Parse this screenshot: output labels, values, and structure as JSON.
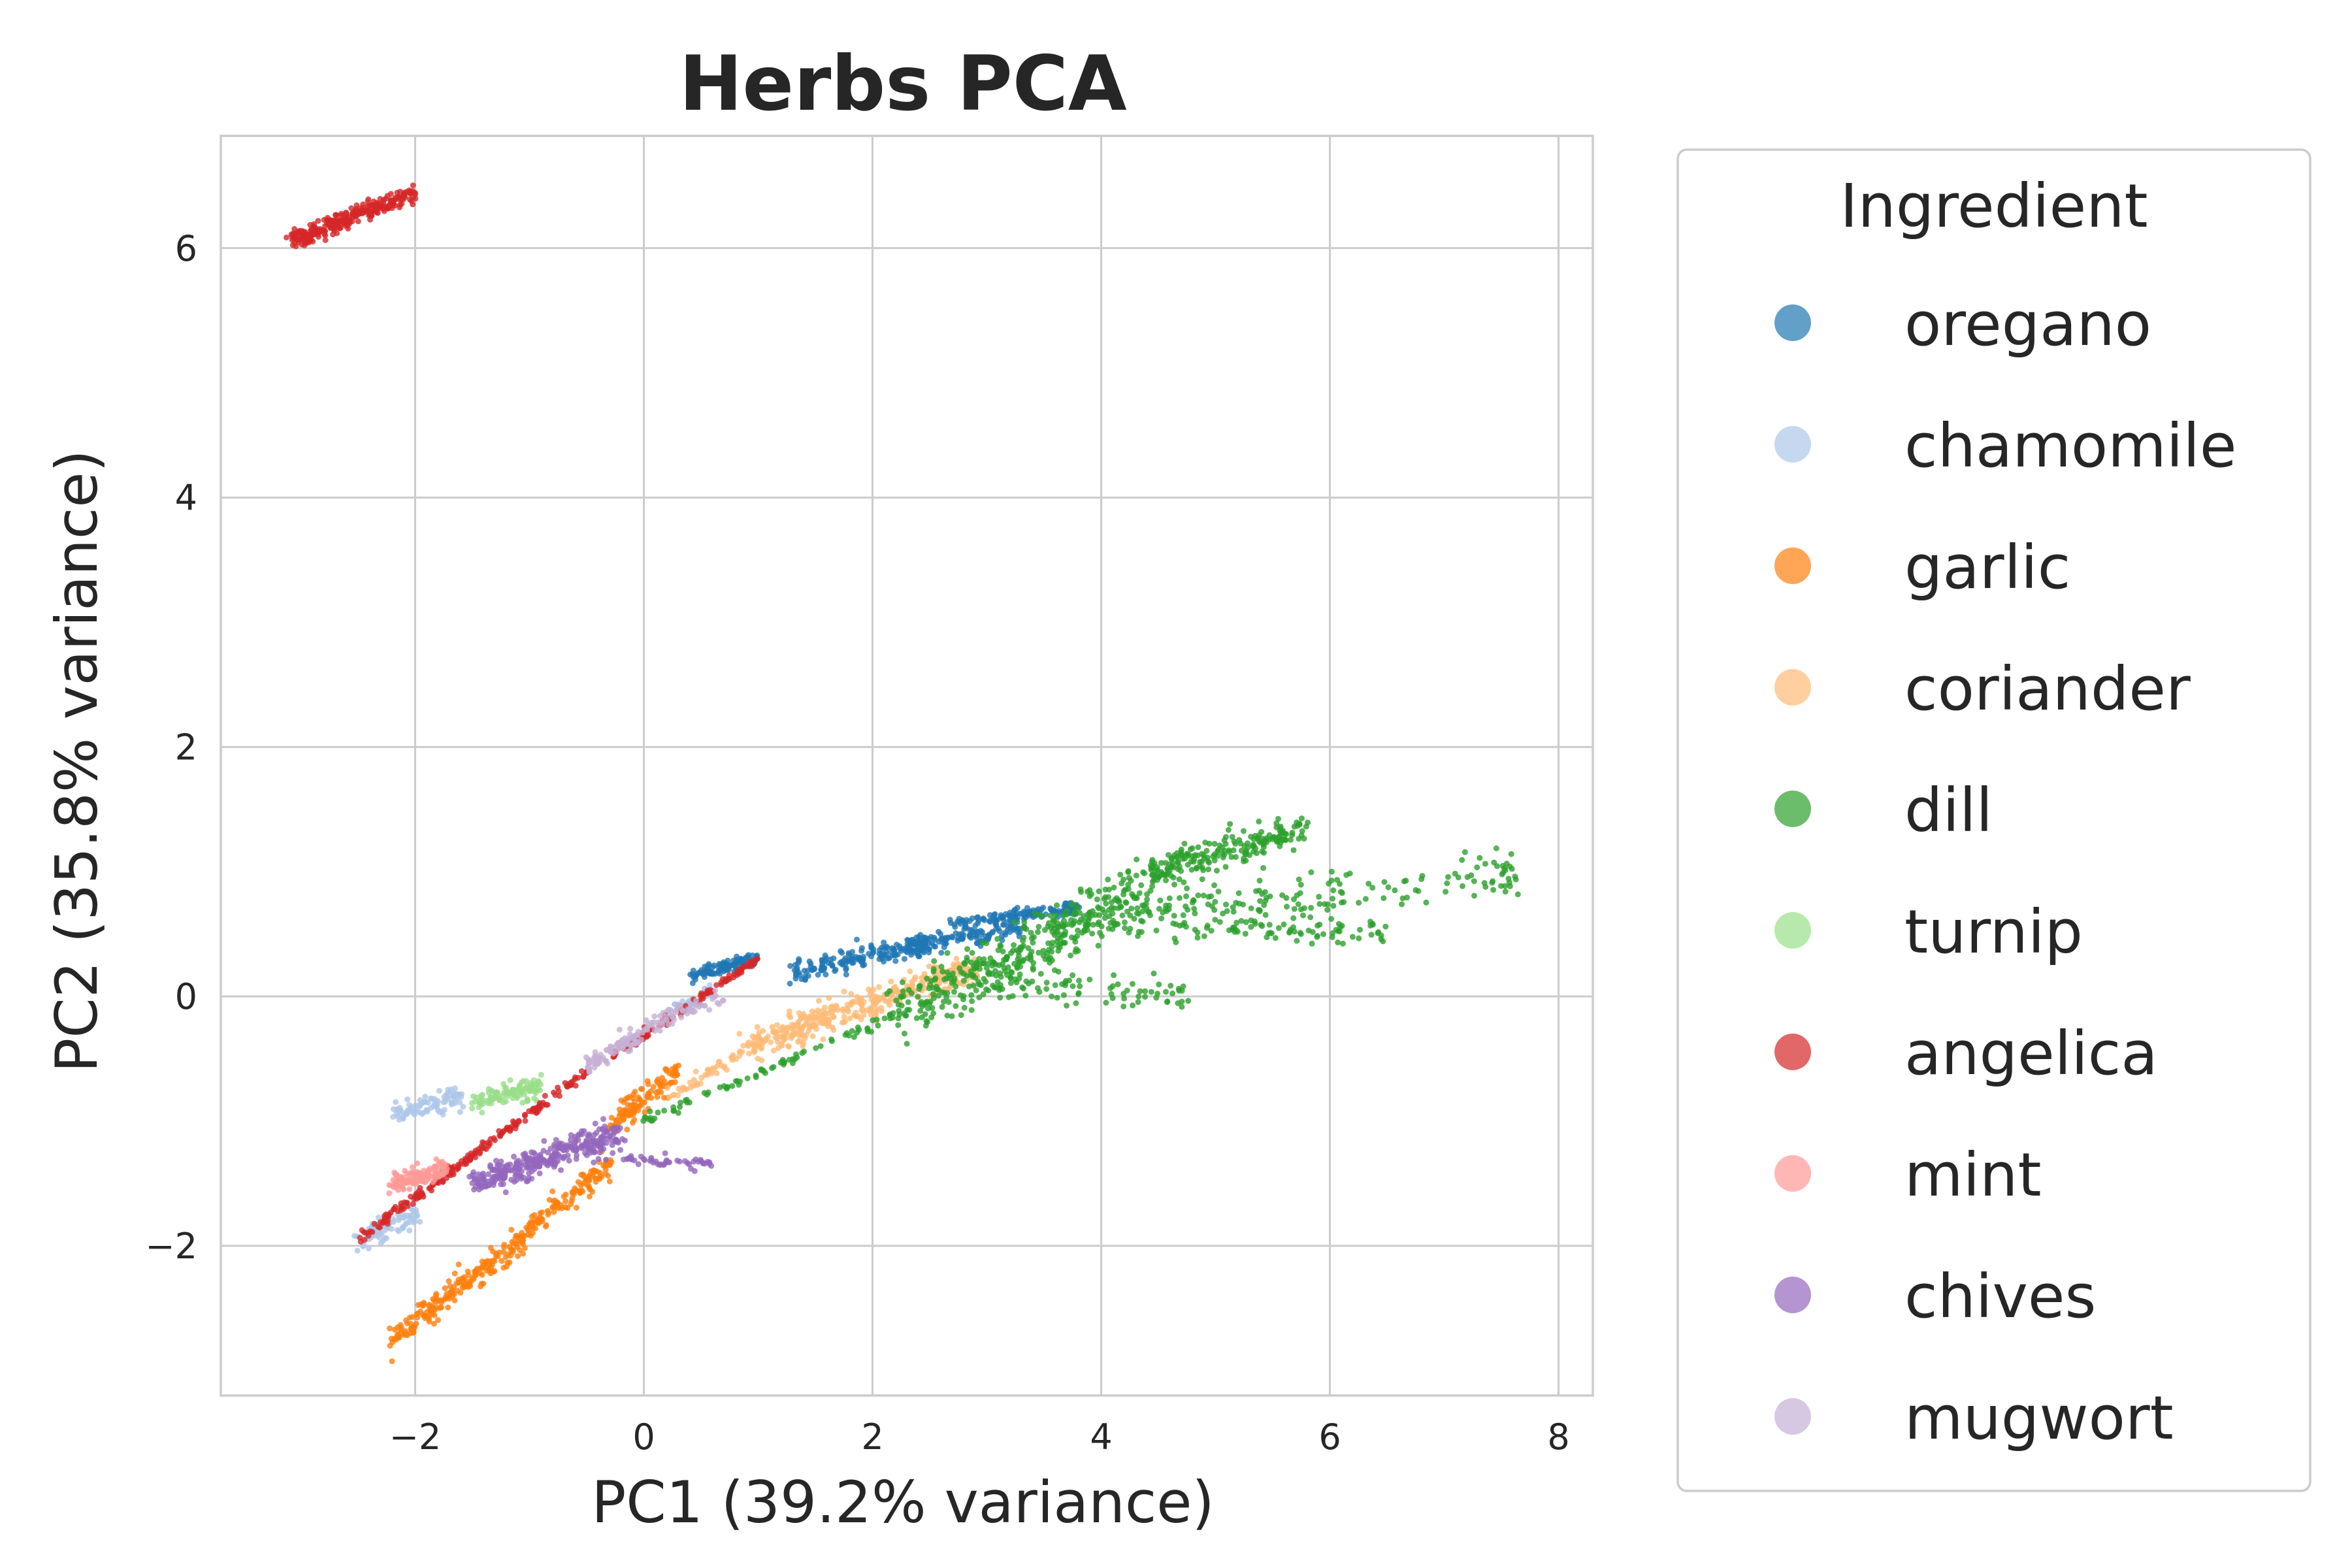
{
  "chart_data": {
    "type": "scatter",
    "title": "Herbs PCA",
    "xlabel": "PC1 (39.2% variance)",
    "ylabel": "PC2 (35.8% variance)",
    "xlim": [
      -3.7,
      8.3
    ],
    "ylim": [
      -3.2,
      6.9
    ],
    "x_ticks": [
      -2,
      0,
      2,
      4,
      6,
      8
    ],
    "y_ticks": [
      -2,
      0,
      2,
      4,
      6
    ],
    "x_tick_labels": [
      "−2",
      "0",
      "2",
      "4",
      "6",
      "8"
    ],
    "y_tick_labels": [
      "−2",
      "0",
      "2",
      "4",
      "6"
    ],
    "grid": true,
    "legend": {
      "title": "Ingredient",
      "placement": "outside-right"
    },
    "series": [
      {
        "name": "oregano",
        "color": "#1f77b4",
        "clusters": [
          {
            "x0": 0.4,
            "y0": 0.17,
            "x1": 1.0,
            "y1": 0.3,
            "spread": 0.03,
            "n": 110
          },
          {
            "x0": 1.3,
            "y0": 0.2,
            "x1": 2.5,
            "y1": 0.42,
            "spread": 0.04,
            "n": 180
          },
          {
            "x0": 2.3,
            "y0": 0.4,
            "x1": 3.3,
            "y1": 0.55,
            "spread": 0.04,
            "n": 120
          },
          {
            "x0": 2.7,
            "y0": 0.58,
            "x1": 3.8,
            "y1": 0.72,
            "spread": 0.03,
            "n": 120
          }
        ]
      },
      {
        "name": "chamomile",
        "color": "#aec7e8",
        "clusters": [
          {
            "x0": -2.2,
            "y0": -0.95,
            "x1": -1.6,
            "y1": -0.8,
            "spread": 0.04,
            "n": 90
          },
          {
            "x0": -2.5,
            "y0": -1.95,
            "x1": -2.0,
            "y1": -1.75,
            "spread": 0.05,
            "n": 90
          },
          {
            "x0": 0.2,
            "y0": -0.15,
            "x1": 0.6,
            "y1": 0.05,
            "spread": 0.03,
            "n": 40
          }
        ]
      },
      {
        "name": "garlic",
        "color": "#ff7f0e",
        "clusters": [
          {
            "x0": -2.2,
            "y0": -2.75,
            "x1": -1.0,
            "y1": -1.9,
            "spread": 0.05,
            "n": 220
          },
          {
            "x0": -1.0,
            "y0": -1.85,
            "x1": -0.3,
            "y1": -1.35,
            "spread": 0.05,
            "n": 120
          },
          {
            "x0": -0.3,
            "y0": -1.05,
            "x1": 0.3,
            "y1": -0.6,
            "spread": 0.05,
            "n": 120
          }
        ]
      },
      {
        "name": "coriander",
        "color": "#ffbb78",
        "clusters": [
          {
            "x0": 0.9,
            "y0": -0.4,
            "x1": 2.9,
            "y1": 0.25,
            "spread": 0.06,
            "n": 380
          },
          {
            "x0": 0.2,
            "y0": -0.8,
            "x1": 1.0,
            "y1": -0.4,
            "spread": 0.03,
            "n": 50
          }
        ]
      },
      {
        "name": "dill",
        "color": "#2ca02c",
        "clusters": [
          {
            "x0": 0.0,
            "y0": -1.0,
            "x1": 2.2,
            "y1": -0.15,
            "spread": 0.02,
            "n": 80
          },
          {
            "x0": 2.2,
            "y0": -0.15,
            "x1": 4.5,
            "y1": 0.9,
            "spread": 0.12,
            "n": 400
          },
          {
            "x0": 4.4,
            "y0": 1.0,
            "x1": 5.8,
            "y1": 1.35,
            "spread": 0.06,
            "n": 200
          },
          {
            "x0": 4.5,
            "y0": 0.7,
            "x1": 7.7,
            "y1": 1.0,
            "spread": 0.08,
            "n": 150
          },
          {
            "x0": 3.5,
            "y0": 0.6,
            "x1": 6.5,
            "y1": 0.5,
            "spread": 0.06,
            "n": 120
          },
          {
            "x0": 3.0,
            "y0": 0.1,
            "x1": 4.8,
            "y1": 0.0,
            "spread": 0.06,
            "n": 80
          }
        ]
      },
      {
        "name": "turnip",
        "color": "#98df8a",
        "clusters": [
          {
            "x0": -1.5,
            "y0": -0.85,
            "x1": -0.9,
            "y1": -0.72,
            "spread": 0.04,
            "n": 110
          }
        ]
      },
      {
        "name": "angelica",
        "color": "#d62728",
        "clusters": [
          {
            "x0": -3.1,
            "y0": 6.05,
            "x1": -2.0,
            "y1": 6.45,
            "spread": 0.035,
            "n": 280
          },
          {
            "x0": -2.5,
            "y0": -1.95,
            "x1": -0.5,
            "y1": -0.6,
            "spread": 0.02,
            "n": 200
          },
          {
            "x0": -0.3,
            "y0": -0.5,
            "x1": 1.0,
            "y1": 0.3,
            "spread": 0.02,
            "n": 110
          }
        ]
      },
      {
        "name": "mint",
        "color": "#ff9896",
        "clusters": [
          {
            "x0": -2.2,
            "y0": -1.5,
            "x1": -1.7,
            "y1": -1.38,
            "spread": 0.04,
            "n": 120
          }
        ]
      },
      {
        "name": "chives",
        "color": "#9467bd",
        "clusters": [
          {
            "x0": -1.5,
            "y0": -1.5,
            "x1": -0.2,
            "y1": -1.1,
            "spread": 0.06,
            "n": 320
          },
          {
            "x0": -0.2,
            "y0": -1.3,
            "x1": 0.6,
            "y1": -1.35,
            "spread": 0.02,
            "n": 50
          }
        ]
      },
      {
        "name": "mugwort",
        "color": "#c5b0d5",
        "clusters": [
          {
            "x0": -0.5,
            "y0": -0.55,
            "x1": 0.0,
            "y1": -0.3,
            "spread": 0.04,
            "n": 90
          },
          {
            "x0": 0.0,
            "y0": -0.25,
            "x1": 0.7,
            "y1": 0.0,
            "spread": 0.03,
            "n": 60
          }
        ]
      }
    ]
  }
}
